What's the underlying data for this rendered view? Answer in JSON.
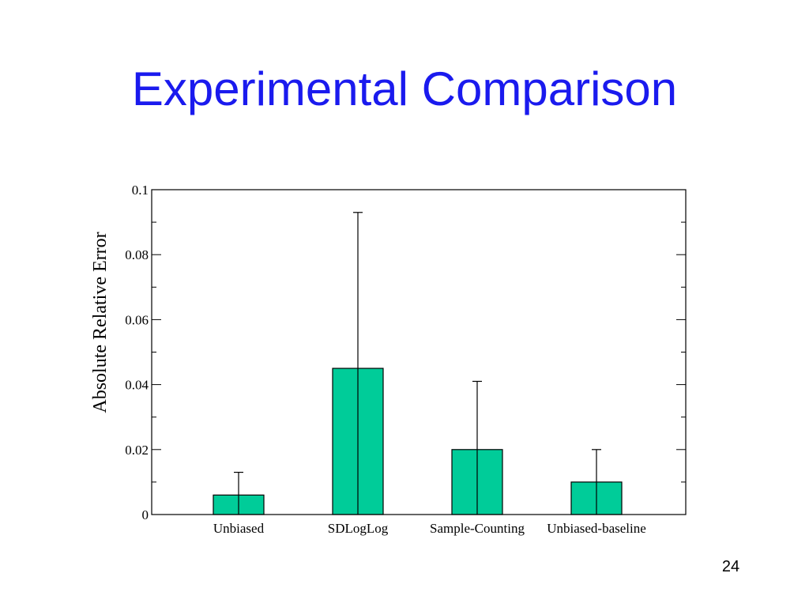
{
  "slide": {
    "title": "Experimental Comparison",
    "page_number": "24"
  },
  "colors": {
    "title": "#1a1aee",
    "bar_fill": "#00cc99",
    "axis": "#000000"
  },
  "chart_data": {
    "type": "bar",
    "title": "",
    "xlabel": "",
    "ylabel": "Absolute Relative Error",
    "ylim": [
      0,
      0.1
    ],
    "yticks": [
      "0",
      "0.02",
      "0.04",
      "0.06",
      "0.08",
      "0.1"
    ],
    "categories": [
      "Unbiased",
      "SDLogLog",
      "Sample-Counting",
      "Unbiased-baseline"
    ],
    "values": [
      0.006,
      0.045,
      0.02,
      0.01
    ],
    "error_upper": [
      0.013,
      0.093,
      0.041,
      0.02
    ],
    "grid": false
  }
}
